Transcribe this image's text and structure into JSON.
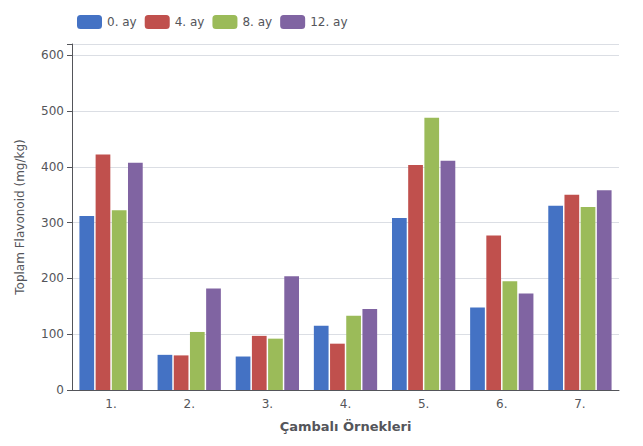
{
  "chart_data": {
    "type": "bar",
    "xlabel": "Çambalı Örnekleri",
    "ylabel": "Toplam Flavonoid (mg/kg)",
    "categories": [
      "1.",
      "2.",
      "3.",
      "4.",
      "5.",
      "6.",
      "7."
    ],
    "series": [
      {
        "name": "0. ay",
        "color": "#4472c4",
        "values": [
          312,
          63,
          60,
          115,
          308,
          148,
          330
        ]
      },
      {
        "name": "4. ay",
        "color": "#c0504d",
        "values": [
          422,
          62,
          97,
          83,
          403,
          277,
          350
        ]
      },
      {
        "name": "8. ay",
        "color": "#9bbb59",
        "values": [
          322,
          104,
          92,
          133,
          488,
          195,
          328
        ]
      },
      {
        "name": "12. ay",
        "color": "#8064a2",
        "values": [
          407,
          182,
          204,
          145,
          411,
          173,
          358
        ]
      }
    ],
    "ylim": [
      0,
      620
    ],
    "yticks": [
      0,
      100,
      200,
      300,
      400,
      500,
      600
    ],
    "grid": true,
    "legend": "upper left"
  }
}
